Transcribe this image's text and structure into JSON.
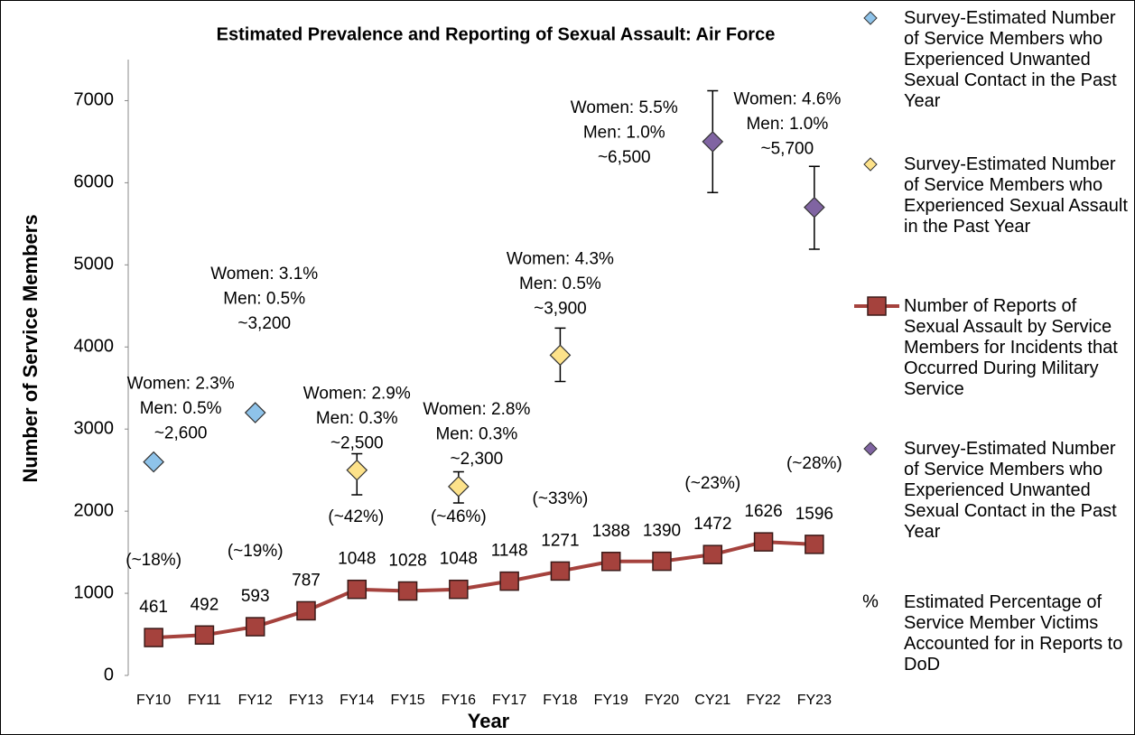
{
  "chart_data": {
    "type": "line",
    "title": "Estimated Prevalence and Reporting of Sexual Assault: Air Force",
    "x_label": "Year",
    "y_label": "Number of Service Members",
    "categories": [
      "FY10",
      "FY11",
      "FY12",
      "FY13",
      "FY14",
      "FY15",
      "FY16",
      "FY17",
      "FY18",
      "FY19",
      "FY20",
      "CY21",
      "FY22",
      "FY23"
    ],
    "ylim": [
      0,
      7500
    ],
    "yticks": [
      0,
      1000,
      2000,
      3000,
      4000,
      5000,
      6000,
      7000
    ],
    "grid": false,
    "legend": "right",
    "series": [
      {
        "name": "Survey-Estimated Number of Service Members who Experienced Unwanted Sexual Contact in the Past Year",
        "type": "scatter",
        "color": "#8ec3ea",
        "values": [
          2600,
          null,
          3200,
          null,
          null,
          null,
          null,
          null,
          null,
          null,
          null,
          null,
          null,
          null
        ],
        "labels": [
          [
            "Women: 2.3%",
            "Men: 0.5%",
            "~2,600"
          ],
          null,
          [
            "Women: 3.1%",
            "Men: 0.5%",
            "~3,200"
          ],
          null,
          null,
          null,
          null,
          null,
          null,
          null,
          null,
          null,
          null,
          null
        ]
      },
      {
        "name": "Survey-Estimated Number of Service Members who Experienced Sexual Assault in the Past Year",
        "type": "scatter",
        "color": "#fde28a",
        "values": [
          null,
          null,
          null,
          null,
          2500,
          null,
          2300,
          null,
          3900,
          null,
          null,
          null,
          null,
          null
        ],
        "error_plus": [
          null,
          null,
          null,
          null,
          200,
          null,
          180,
          null,
          330,
          null,
          null,
          null,
          null,
          null
        ],
        "error_minus": [
          null,
          null,
          null,
          null,
          300,
          null,
          200,
          null,
          320,
          null,
          null,
          null,
          null,
          null
        ],
        "labels": [
          null,
          null,
          null,
          null,
          [
            "Women: 2.9%",
            "Men: 0.3%",
            "~2,500"
          ],
          null,
          [
            "Women: 2.8%",
            "Men: 0.3%",
            "~2,300"
          ],
          null,
          [
            "Women: 4.3%",
            "Men: 0.5%",
            "~3,900"
          ],
          null,
          null,
          null,
          null,
          null
        ]
      },
      {
        "name": "Number of Reports of Sexual Assault by Service Members for Incidents that Occurred During Military Service",
        "type": "line",
        "color": "#a5423d",
        "values": [
          461,
          492,
          593,
          787,
          1048,
          1028,
          1048,
          1148,
          1271,
          1388,
          1390,
          1472,
          1626,
          1596
        ]
      },
      {
        "name": "Survey-Estimated Number of Service Members who Experienced Unwanted Sexual Contact in the Past Year",
        "type": "scatter",
        "color": "#8064a2",
        "values": [
          null,
          null,
          null,
          null,
          null,
          null,
          null,
          null,
          null,
          null,
          null,
          6500,
          null,
          5700
        ],
        "error_plus": [
          null,
          null,
          null,
          null,
          null,
          null,
          null,
          null,
          null,
          null,
          null,
          620,
          null,
          500
        ],
        "error_minus": [
          null,
          null,
          null,
          null,
          null,
          null,
          null,
          null,
          null,
          null,
          null,
          620,
          null,
          510
        ],
        "labels": [
          null,
          null,
          null,
          null,
          null,
          null,
          null,
          null,
          null,
          null,
          null,
          [
            "Women: 5.5%",
            "Men: 1.0%",
            "~6,500"
          ],
          null,
          [
            "Women: 4.6%",
            "Men: 1.0%",
            "~5,700"
          ]
        ]
      },
      {
        "name": "Estimated Percentage of Service Member Victims Accounted for in Reports to DoD",
        "type": "label",
        "marker": "%",
        "values": [
          18,
          null,
          19,
          null,
          42,
          null,
          46,
          null,
          33,
          null,
          null,
          23,
          null,
          28
        ],
        "value_labels": [
          "(~18%)",
          null,
          "(~19%)",
          null,
          "(~42%)",
          null,
          "(~46%)",
          null,
          "(~33%)",
          null,
          null,
          "(~23%)",
          null,
          "(~28%)"
        ]
      }
    ]
  }
}
